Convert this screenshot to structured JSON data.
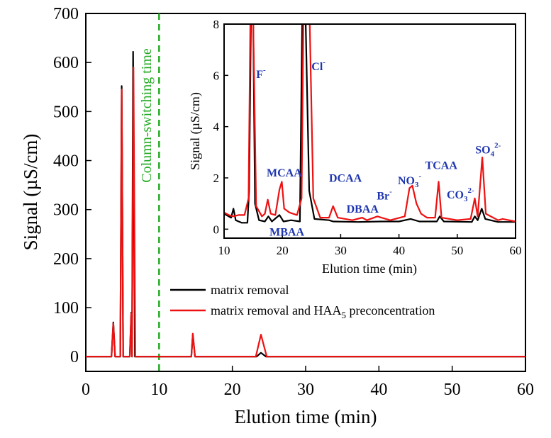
{
  "chart_data": [
    {
      "id": "main",
      "type": "line",
      "xlabel": "Elution time (min)",
      "ylabel": "Signal (µS/cm)",
      "xlim": [
        0,
        60
      ],
      "ylim": [
        -30,
        700
      ],
      "xticks": [
        "0",
        "10",
        "20",
        "30",
        "40",
        "50",
        "60"
      ],
      "yticks": [
        "0",
        "100",
        "200",
        "300",
        "400",
        "500",
        "600",
        "700"
      ],
      "legend": {
        "placement": "lower-right",
        "entries": [
          {
            "series": "matrix removal",
            "label": "matrix removal"
          },
          {
            "series": "matrix removal and HAA5 preconcentration",
            "label_main": "matrix removal and HAA",
            "label_sub": "5",
            "label_tail": " preconcentration"
          }
        ]
      },
      "vline": {
        "x": 10,
        "label": "Column-switching time",
        "color": "#22aa22"
      },
      "series": [
        {
          "name": "matrix removal",
          "color": "#000000",
          "points": [
            [
              0,
              0
            ],
            [
              3.5,
              0
            ],
            [
              3.75,
              70
            ],
            [
              4.0,
              0
            ],
            [
              4.7,
              0
            ],
            [
              4.9,
              552
            ],
            [
              5.1,
              0
            ],
            [
              6.0,
              0
            ],
            [
              6.2,
              90
            ],
            [
              6.3,
              0
            ],
            [
              6.45,
              622
            ],
            [
              6.7,
              0
            ],
            [
              14.4,
              0
            ],
            [
              14.6,
              45
            ],
            [
              14.9,
              0
            ],
            [
              23.3,
              0
            ],
            [
              23.9,
              8
            ],
            [
              24.6,
              0
            ],
            [
              60,
              0
            ]
          ]
        },
        {
          "name": "matrix removal and HAA5 preconcentration",
          "color": "#ee1111",
          "points": [
            [
              0,
              0
            ],
            [
              3.5,
              0
            ],
            [
              3.75,
              68
            ],
            [
              4.0,
              0
            ],
            [
              4.7,
              0
            ],
            [
              4.9,
              545
            ],
            [
              5.1,
              0
            ],
            [
              6.0,
              0
            ],
            [
              6.2,
              88
            ],
            [
              6.3,
              0
            ],
            [
              6.5,
              590
            ],
            [
              6.75,
              0
            ],
            [
              14.4,
              0
            ],
            [
              14.6,
              47
            ],
            [
              14.9,
              0
            ],
            [
              23.2,
              0
            ],
            [
              23.9,
              45
            ],
            [
              24.7,
              0
            ],
            [
              60,
              0
            ]
          ]
        }
      ]
    },
    {
      "id": "inset",
      "type": "line",
      "xlabel": "Elution time (min)",
      "ylabel": "Signal (µS/cm)",
      "xlim": [
        10,
        60
      ],
      "ylim": [
        -0.35,
        8
      ],
      "xticks": [
        "10",
        "20",
        "30",
        "40",
        "50",
        "60"
      ],
      "yticks": [
        "0",
        "2",
        "4",
        "6",
        "8"
      ],
      "annotations": [
        {
          "main": "F",
          "sup": "-",
          "x": 15.5,
          "y": 5.9
        },
        {
          "main": "Cl",
          "sup": "-",
          "x": 25.0,
          "y": 6.2
        },
        {
          "main": "MCAA",
          "x": 17.3,
          "y": 2.05
        },
        {
          "main": "DCAA",
          "x": 28.0,
          "y": 1.85
        },
        {
          "main": "MBAA",
          "x": 17.8,
          "y": -0.25
        },
        {
          "main": "DBAA",
          "x": 31.0,
          "y": 0.65
        },
        {
          "main": "Br",
          "sup": "-",
          "x": 36.2,
          "y": 1.15
        },
        {
          "main": "NO",
          "sub": "3",
          "sup": "-",
          "x": 39.8,
          "y": 1.75
        },
        {
          "main": "TCAA",
          "x": 44.5,
          "y": 2.35
        },
        {
          "main": "CO",
          "sub": "3",
          "sup": "2-",
          "x": 48.2,
          "y": 1.2
        },
        {
          "main": "SO",
          "sub": "4",
          "sup": "2-",
          "x": 53.1,
          "y": 2.95
        }
      ],
      "series": [
        {
          "name": "matrix removal",
          "color": "#000000",
          "points": [
            [
              10,
              0.6
            ],
            [
              10.8,
              0.5
            ],
            [
              11.2,
              0.45
            ],
            [
              11.6,
              0.8
            ],
            [
              12.0,
              0.35
            ],
            [
              13.0,
              0.25
            ],
            [
              14.0,
              0.25
            ],
            [
              14.3,
              1.5
            ],
            [
              14.6,
              8
            ],
            [
              15.0,
              8
            ],
            [
              15.3,
              1.0
            ],
            [
              16.0,
              0.35
            ],
            [
              17.0,
              0.3
            ],
            [
              17.6,
              0.5
            ],
            [
              18.2,
              0.3
            ],
            [
              19.5,
              0.55
            ],
            [
              20.2,
              0.3
            ],
            [
              21.5,
              0.35
            ],
            [
              23.0,
              0.3
            ],
            [
              23.4,
              8
            ],
            [
              24.0,
              8
            ],
            [
              24.6,
              1.5
            ],
            [
              25.5,
              0.4
            ],
            [
              28.0,
              0.35
            ],
            [
              28.7,
              0.3
            ],
            [
              33.0,
              0.28
            ],
            [
              37.0,
              0.3
            ],
            [
              40.0,
              0.3
            ],
            [
              42.0,
              0.4
            ],
            [
              43.5,
              0.3
            ],
            [
              46.5,
              0.3
            ],
            [
              47.0,
              0.5
            ],
            [
              47.7,
              0.3
            ],
            [
              52.5,
              0.28
            ],
            [
              53.0,
              0.5
            ],
            [
              53.5,
              0.35
            ],
            [
              54.2,
              0.8
            ],
            [
              54.8,
              0.4
            ],
            [
              57.0,
              0.28
            ],
            [
              60,
              0.28
            ]
          ]
        },
        {
          "name": "matrix removal and HAA5 preconcentration",
          "color": "#ee1111",
          "points": [
            [
              10,
              0.65
            ],
            [
              10.8,
              0.55
            ],
            [
              11.5,
              0.5
            ],
            [
              12.5,
              0.55
            ],
            [
              13.5,
              0.55
            ],
            [
              14.2,
              1.2
            ],
            [
              14.5,
              8
            ],
            [
              15.0,
              8
            ],
            [
              15.5,
              0.9
            ],
            [
              16.5,
              0.5
            ],
            [
              17.0,
              0.6
            ],
            [
              17.5,
              1.15
            ],
            [
              18.0,
              0.6
            ],
            [
              18.8,
              0.55
            ],
            [
              19.5,
              1.55
            ],
            [
              19.9,
              1.85
            ],
            [
              20.3,
              0.8
            ],
            [
              21.2,
              0.65
            ],
            [
              22.5,
              0.55
            ],
            [
              23.3,
              1.2
            ],
            [
              23.6,
              8
            ],
            [
              24.7,
              8
            ],
            [
              25.3,
              1.2
            ],
            [
              26.5,
              0.45
            ],
            [
              28.0,
              0.45
            ],
            [
              28.7,
              0.9
            ],
            [
              29.5,
              0.45
            ],
            [
              32.0,
              0.35
            ],
            [
              33.7,
              0.45
            ],
            [
              34.5,
              0.35
            ],
            [
              36.3,
              0.5
            ],
            [
              37.0,
              0.45
            ],
            [
              38.5,
              0.35
            ],
            [
              41.0,
              0.5
            ],
            [
              41.8,
              1.6
            ],
            [
              42.3,
              1.7
            ],
            [
              43.0,
              1.0
            ],
            [
              43.8,
              0.6
            ],
            [
              44.8,
              0.45
            ],
            [
              46.2,
              0.45
            ],
            [
              46.8,
              1.85
            ],
            [
              47.3,
              0.45
            ],
            [
              50.0,
              0.35
            ],
            [
              52.3,
              0.4
            ],
            [
              53.0,
              1.2
            ],
            [
              53.5,
              0.5
            ],
            [
              54.3,
              2.8
            ],
            [
              54.9,
              0.6
            ],
            [
              57.0,
              0.35
            ],
            [
              57.8,
              0.4
            ],
            [
              60,
              0.3
            ]
          ]
        }
      ]
    }
  ]
}
